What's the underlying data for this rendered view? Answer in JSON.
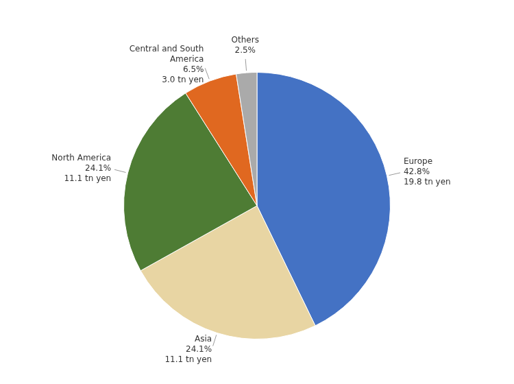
{
  "chart_data": {
    "type": "pie",
    "categories": [
      "Europe",
      "Asia",
      "North America",
      "Central and South\nAmerica",
      "Others"
    ],
    "values": [
      42.8,
      24.1,
      24.1,
      6.5,
      2.5
    ],
    "value_labels": [
      "42.8%",
      "24.1%",
      "24.1%",
      "6.5%",
      "2.5%"
    ],
    "colors": [
      "#4472C4",
      "#E8D5A3",
      "#4E7C34",
      "#E06820",
      "#AAAAAA"
    ],
    "data_labels": true,
    "annotations": [
      {
        "category": "Europe",
        "text": "19.8 tn yen"
      },
      {
        "category": "Asia",
        "text": "11.1 tn yen"
      },
      {
        "category": "North America",
        "text": "11.1 tn yen"
      },
      {
        "category": "Central and South\nAmerica",
        "text": "3.0 tn yen"
      }
    ]
  }
}
